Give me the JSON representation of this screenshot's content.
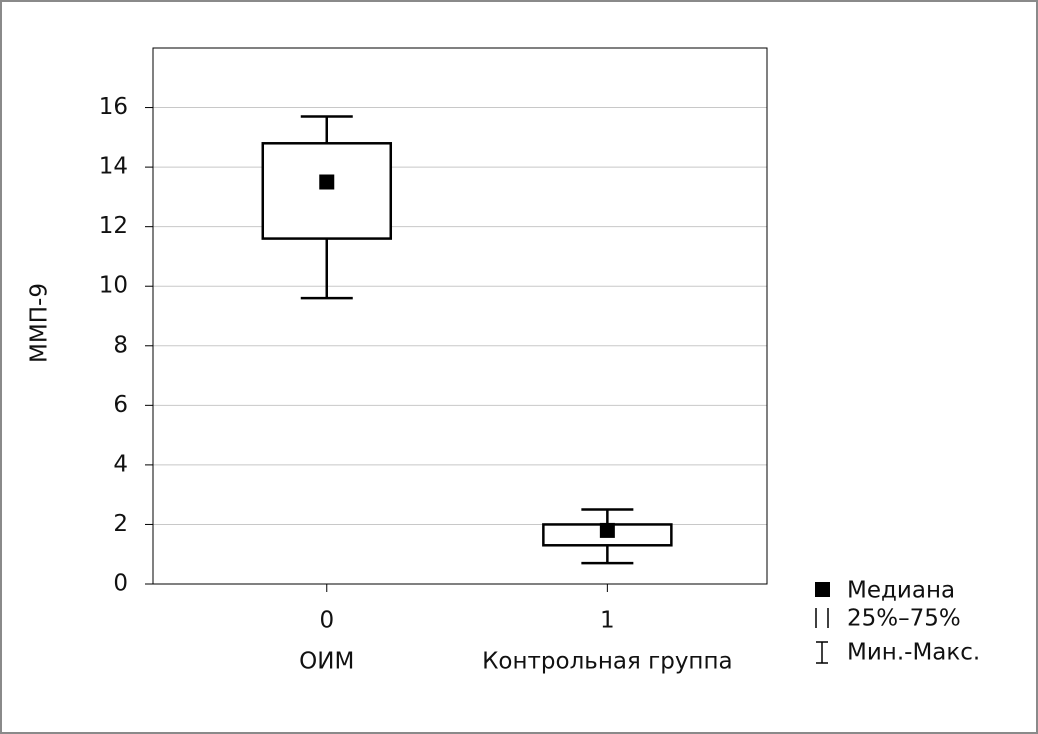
{
  "chart_data": {
    "type": "box",
    "y_label": "ММП-9",
    "categories": [
      "0",
      "1"
    ],
    "category_names": [
      "ОИМ",
      "Контрольная группа"
    ],
    "min": [
      9.6,
      0.7
    ],
    "q1": [
      11.6,
      1.3
    ],
    "median": [
      13.5,
      1.8
    ],
    "q3": [
      14.8,
      2.0
    ],
    "max": [
      15.7,
      2.5
    ],
    "ylim": [
      0,
      18
    ],
    "yticks": [
      0,
      2,
      4,
      6,
      8,
      10,
      12,
      14,
      16
    ],
    "grid": true,
    "color": "#000000",
    "legend": {
      "median": "Медиана",
      "box": "25%–75%",
      "whisker": "Мин.-Макс."
    }
  }
}
